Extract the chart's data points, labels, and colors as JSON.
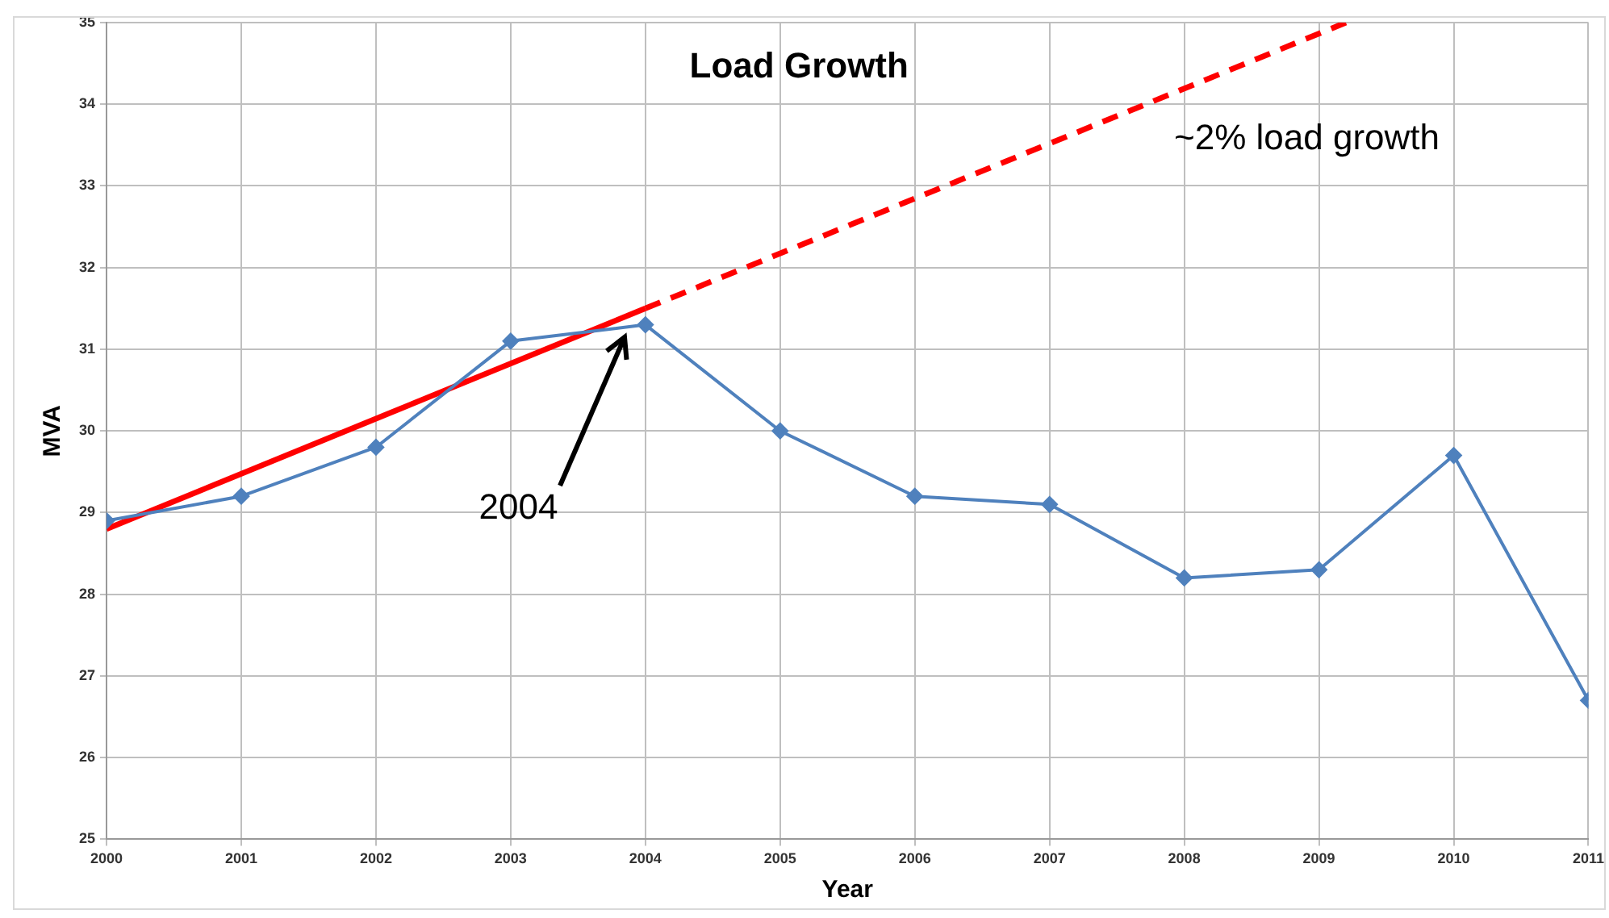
{
  "chart_data": {
    "type": "line",
    "title": "Load Growth",
    "xlabel": "Year",
    "ylabel": "MVA",
    "xlim": [
      2000,
      2011
    ],
    "xticks": [
      2000,
      2001,
      2002,
      2003,
      2004,
      2005,
      2006,
      2007,
      2008,
      2009,
      2010,
      2011
    ],
    "ylim": [
      25,
      35
    ],
    "yticks": [
      25,
      26,
      27,
      28,
      29,
      30,
      31,
      32,
      33,
      34,
      35
    ],
    "grid": true,
    "legend": false,
    "series": [
      {
        "color": "#4f81bd",
        "marker": "diamond",
        "line_style": "solid",
        "x": [
          2000,
          2001,
          2002,
          2003,
          2004,
          2005,
          2006,
          2007,
          2008,
          2009,
          2010,
          2011
        ],
        "values": [
          28.9,
          29.2,
          29.8,
          31.1,
          31.3,
          30.0,
          29.2,
          29.1,
          28.2,
          28.3,
          29.7,
          26.7
        ]
      },
      {
        "color": "#ff0000",
        "marker": "none",
        "line_style": "solid",
        "x": [
          2000,
          2004
        ],
        "values": [
          28.8,
          31.5
        ]
      },
      {
        "color": "#ff0000",
        "marker": "none",
        "line_style": "dashed",
        "x": [
          2004,
          2009.2
        ],
        "values": [
          31.5,
          35.0
        ]
      }
    ],
    "annotations": [
      "~2% load growth",
      "2004"
    ]
  }
}
